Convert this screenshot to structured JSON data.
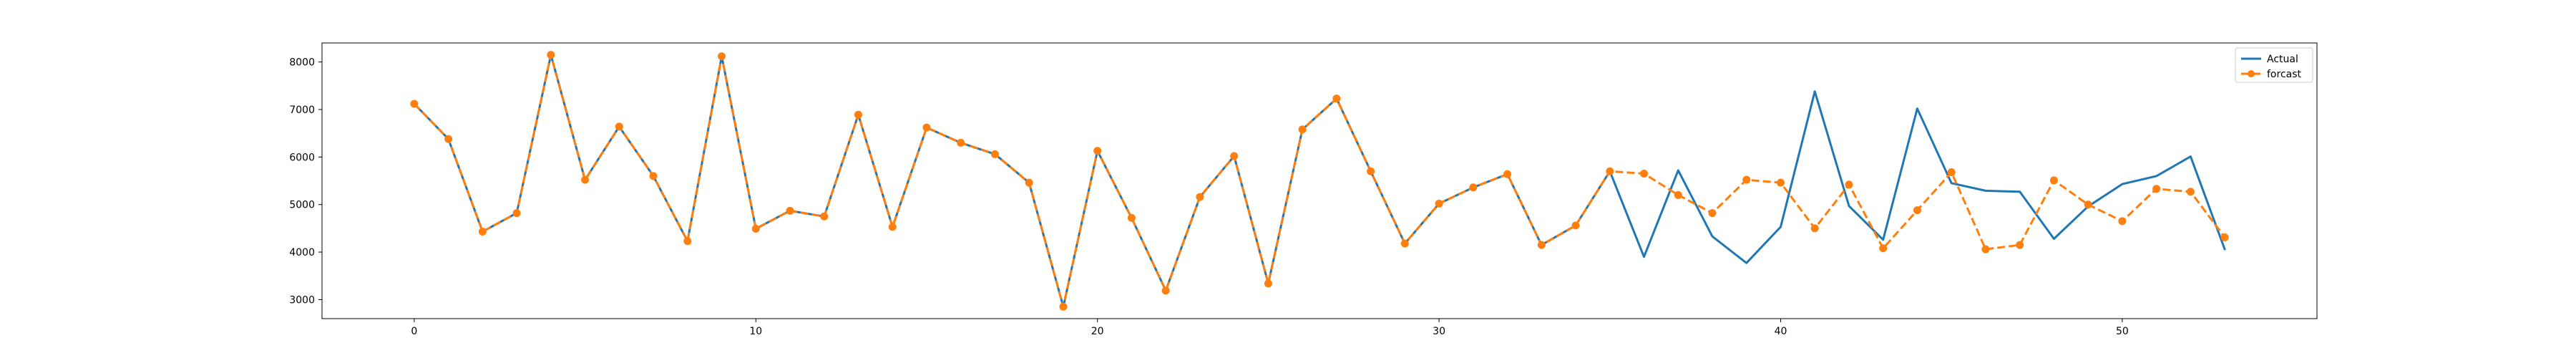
{
  "chart_data": {
    "type": "line",
    "title": "",
    "xlabel": "",
    "ylabel": "",
    "xlim": [
      -2.7,
      55.7
    ],
    "ylim": [
      2600,
      8400
    ],
    "xticks": [
      0,
      10,
      20,
      30,
      40,
      50
    ],
    "yticks": [
      3000,
      4000,
      5000,
      6000,
      7000,
      8000
    ],
    "grid": false,
    "legend_position": "top-right",
    "series": [
      {
        "name": "Actual",
        "color": "#1f77b4",
        "style": "solid",
        "marker": "none",
        "x": [
          0,
          1,
          2,
          3,
          4,
          5,
          6,
          7,
          8,
          9,
          10,
          11,
          12,
          13,
          14,
          15,
          16,
          17,
          18,
          19,
          20,
          21,
          22,
          23,
          24,
          25,
          26,
          27,
          28,
          29,
          30,
          31,
          32,
          33,
          34,
          35,
          36,
          37,
          38,
          39,
          40,
          41,
          42,
          43,
          44,
          45,
          46,
          47,
          48,
          49,
          50,
          51,
          52,
          53
        ],
        "values": [
          7120,
          6380,
          4430,
          4820,
          8150,
          5520,
          6640,
          5600,
          4230,
          8120,
          4490,
          4870,
          4750,
          6890,
          4530,
          6620,
          6300,
          6060,
          5460,
          2850,
          6130,
          4720,
          3190,
          5160,
          6020,
          3340,
          6580,
          7230,
          5700,
          4180,
          5020,
          5360,
          5640,
          4150,
          4560,
          5700,
          3900,
          5720,
          4330,
          3770,
          4530,
          7380,
          4970,
          4260,
          7020,
          5450,
          5290,
          5270,
          4280,
          4960,
          5430,
          5600,
          6010,
          4060
        ]
      },
      {
        "name": "forcast",
        "color": "#ff7f0e",
        "style": "dashed",
        "marker": "circle",
        "x": [
          0,
          1,
          2,
          3,
          4,
          5,
          6,
          7,
          8,
          9,
          10,
          11,
          12,
          13,
          14,
          15,
          16,
          17,
          18,
          19,
          20,
          21,
          22,
          23,
          24,
          25,
          26,
          27,
          28,
          29,
          30,
          31,
          32,
          33,
          34,
          35,
          36,
          37,
          38,
          39,
          40,
          41,
          42,
          43,
          44,
          45,
          46,
          47,
          48,
          49,
          50,
          51,
          52,
          53
        ],
        "values": [
          7120,
          6380,
          4430,
          4820,
          8150,
          5520,
          6640,
          5600,
          4230,
          8120,
          4490,
          4870,
          4750,
          6890,
          4530,
          6620,
          6300,
          6060,
          5460,
          2850,
          6130,
          4720,
          3190,
          5160,
          6020,
          3340,
          6580,
          7230,
          5700,
          4180,
          5020,
          5360,
          5640,
          4150,
          4560,
          5700,
          5650,
          5200,
          4820,
          5520,
          5460,
          4500,
          5420,
          4080,
          4880,
          5680,
          4060,
          4150,
          5510,
          5000,
          4650,
          5330,
          5270,
          4310
        ]
      }
    ]
  }
}
